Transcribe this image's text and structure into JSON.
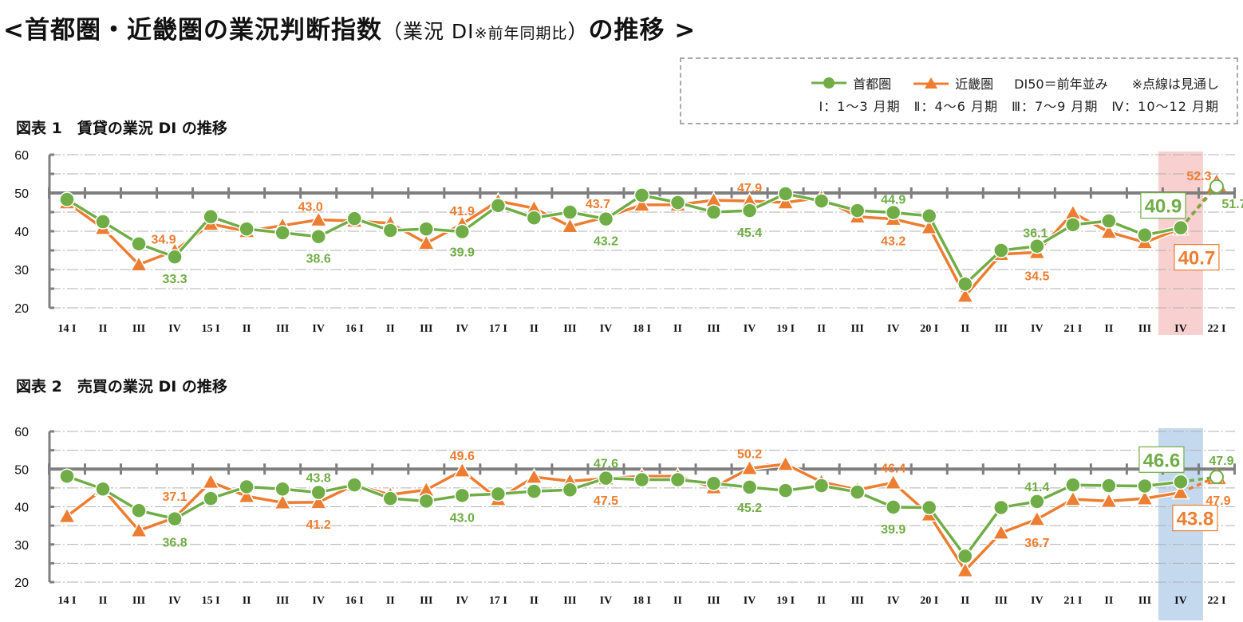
{
  "header": {
    "title_open": "<",
    "title_main": "首都圏・近畿圏の業況判断指数",
    "title_paren": "（業況 DI",
    "title_note": "※前年同期比",
    "title_paren_close": "）",
    "title_tail": "の推移",
    "title_close": ">"
  },
  "legend": {
    "series1": "首都圏",
    "series2": "近畿圏",
    "reference": "DI50＝前年並み",
    "note": "※点線は見通し",
    "quarters": "Ⅰ：1～3 月期　Ⅱ：4～6 月期　Ⅲ：7～9 月期　Ⅳ：10～12 月期"
  },
  "colors": {
    "series1": "#70ad47",
    "series2": "#ed7d31",
    "axis": "#7f7f7f",
    "highlight1": "#f9d0d0",
    "highlight2": "#c5d9ee"
  },
  "chart_data": [
    {
      "type": "line",
      "title": "図表 1　賃貸の業況 DI の推移",
      "categories": [
        "14 I",
        "II",
        "III",
        "IV",
        "15 I",
        "II",
        "III",
        "IV",
        "16 I",
        "II",
        "III",
        "IV",
        "17 I",
        "II",
        "III",
        "IV",
        "18 I",
        "II",
        "III",
        "IV",
        "19 I",
        "II",
        "III",
        "IV",
        "20 I",
        "II",
        "III",
        "IV",
        "21 I",
        "II",
        "III",
        "IV",
        "22 I"
      ],
      "y_ticks": [
        20,
        30,
        40,
        50,
        60
      ],
      "ylim": [
        20,
        60
      ],
      "reference_line": 50,
      "grid": true,
      "highlight_category_index": 31,
      "forecast_last_point": true,
      "series": [
        {
          "name": "首都圏",
          "marker": "circle",
          "color": "#70ad47",
          "values": [
            48.3,
            42.5,
            36.7,
            33.3,
            43.8,
            40.6,
            39.6,
            38.6,
            43.3,
            40.2,
            40.6,
            39.9,
            46.7,
            43.5,
            45.0,
            43.2,
            49.4,
            47.5,
            45.0,
            45.4,
            49.8,
            47.9,
            45.4,
            44.9,
            44.0,
            26.2,
            35.0,
            36.1,
            41.7,
            42.7,
            39.0,
            40.9,
            51.7
          ],
          "labeled_indices": [
            3,
            7,
            11,
            15,
            19,
            23,
            27,
            31,
            32
          ]
        },
        {
          "name": "近畿圏",
          "marker": "triangle",
          "color": "#ed7d31",
          "values": [
            47.5,
            40.8,
            31.3,
            34.9,
            41.9,
            40.0,
            41.5,
            43.0,
            42.7,
            42.1,
            36.9,
            41.9,
            47.9,
            46.0,
            41.3,
            43.7,
            46.9,
            46.9,
            48.1,
            47.9,
            47.5,
            48.8,
            43.8,
            43.2,
            41.0,
            23.1,
            34.0,
            34.5,
            44.8,
            39.8,
            37.1,
            40.7,
            52.3
          ],
          "labeled_indices": [
            3,
            7,
            11,
            15,
            19,
            23,
            27,
            31,
            32
          ]
        }
      ]
    },
    {
      "type": "line",
      "title": "図表 2　売買の業況 DI の推移",
      "categories": [
        "14 I",
        "II",
        "III",
        "IV",
        "15 I",
        "II",
        "III",
        "IV",
        "16 I",
        "II",
        "III",
        "IV",
        "17 I",
        "II",
        "III",
        "IV",
        "18 I",
        "II",
        "III",
        "IV",
        "19 I",
        "II",
        "III",
        "IV",
        "20 I",
        "II",
        "III",
        "IV",
        "21 I",
        "II",
        "III",
        "IV",
        "22 I"
      ],
      "y_ticks": [
        20,
        30,
        40,
        50,
        60
      ],
      "ylim": [
        20,
        60
      ],
      "reference_line": 50,
      "grid": true,
      "highlight_category_index": 31,
      "forecast_last_point": true,
      "series": [
        {
          "name": "首都圏",
          "marker": "circle",
          "color": "#70ad47",
          "values": [
            48.1,
            44.7,
            39.0,
            36.8,
            42.2,
            45.3,
            44.7,
            43.8,
            45.8,
            42.2,
            41.5,
            43.0,
            43.4,
            44.1,
            44.5,
            47.6,
            47.2,
            47.2,
            46.2,
            45.2,
            44.3,
            45.6,
            43.9,
            39.9,
            39.8,
            26.9,
            39.8,
            41.4,
            45.8,
            45.6,
            45.5,
            46.6,
            47.9
          ],
          "labeled_indices": [
            3,
            7,
            11,
            15,
            19,
            23,
            27,
            31,
            32
          ]
        },
        {
          "name": "近畿圏",
          "marker": "triangle",
          "color": "#ed7d31",
          "values": [
            37.5,
            44.7,
            33.7,
            37.1,
            46.6,
            42.8,
            41.1,
            41.2,
            45.8,
            43.2,
            44.5,
            49.6,
            42.0,
            47.9,
            46.8,
            47.5,
            48.1,
            48.1,
            45.1,
            50.2,
            51.3,
            46.6,
            44.5,
            46.4,
            37.9,
            23.1,
            33.1,
            36.7,
            42.0,
            41.5,
            42.2,
            43.8,
            47.9
          ],
          "labeled_indices": [
            3,
            7,
            11,
            15,
            19,
            23,
            27,
            31,
            32
          ]
        }
      ]
    }
  ]
}
